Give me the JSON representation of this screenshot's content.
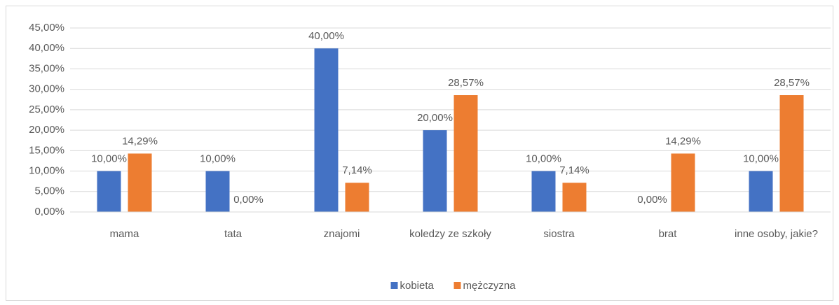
{
  "chart_data": {
    "type": "bar",
    "categories": [
      "mama",
      "tata",
      "znajomi",
      "koledzy ze szkoły",
      "siostra",
      "brat",
      "inne osoby, jakie?"
    ],
    "series": [
      {
        "name": "kobieta",
        "color": "#4472c4",
        "values": [
          10,
          10,
          40,
          20,
          10,
          0,
          10
        ],
        "value_labels": [
          "10,00%",
          "10,00%",
          "40,00%",
          "20,00%",
          "10,00%",
          "0,00%",
          "10,00%"
        ]
      },
      {
        "name": "mężczyzna",
        "color": "#ed7d31",
        "values": [
          14.29,
          0,
          7.14,
          28.57,
          7.14,
          14.29,
          28.57
        ],
        "value_labels": [
          "14,29%",
          "0,00%",
          "7,14%",
          "28,57%",
          "7,14%",
          "14,29%",
          "28,57%"
        ]
      }
    ],
    "ylim": [
      0,
      45
    ],
    "yticks": [
      {
        "value": 0,
        "label": "0,00%"
      },
      {
        "value": 5,
        "label": "5,00%"
      },
      {
        "value": 10,
        "label": "10,00%"
      },
      {
        "value": 15,
        "label": "15,00%"
      },
      {
        "value": 20,
        "label": "20,00%"
      },
      {
        "value": 25,
        "label": "25,00%"
      },
      {
        "value": 30,
        "label": "30,00%"
      },
      {
        "value": 35,
        "label": "35,00%"
      },
      {
        "value": 40,
        "label": "40,00%"
      },
      {
        "value": 45,
        "label": "45,00%"
      }
    ],
    "grid": true,
    "legend": "bottom"
  }
}
